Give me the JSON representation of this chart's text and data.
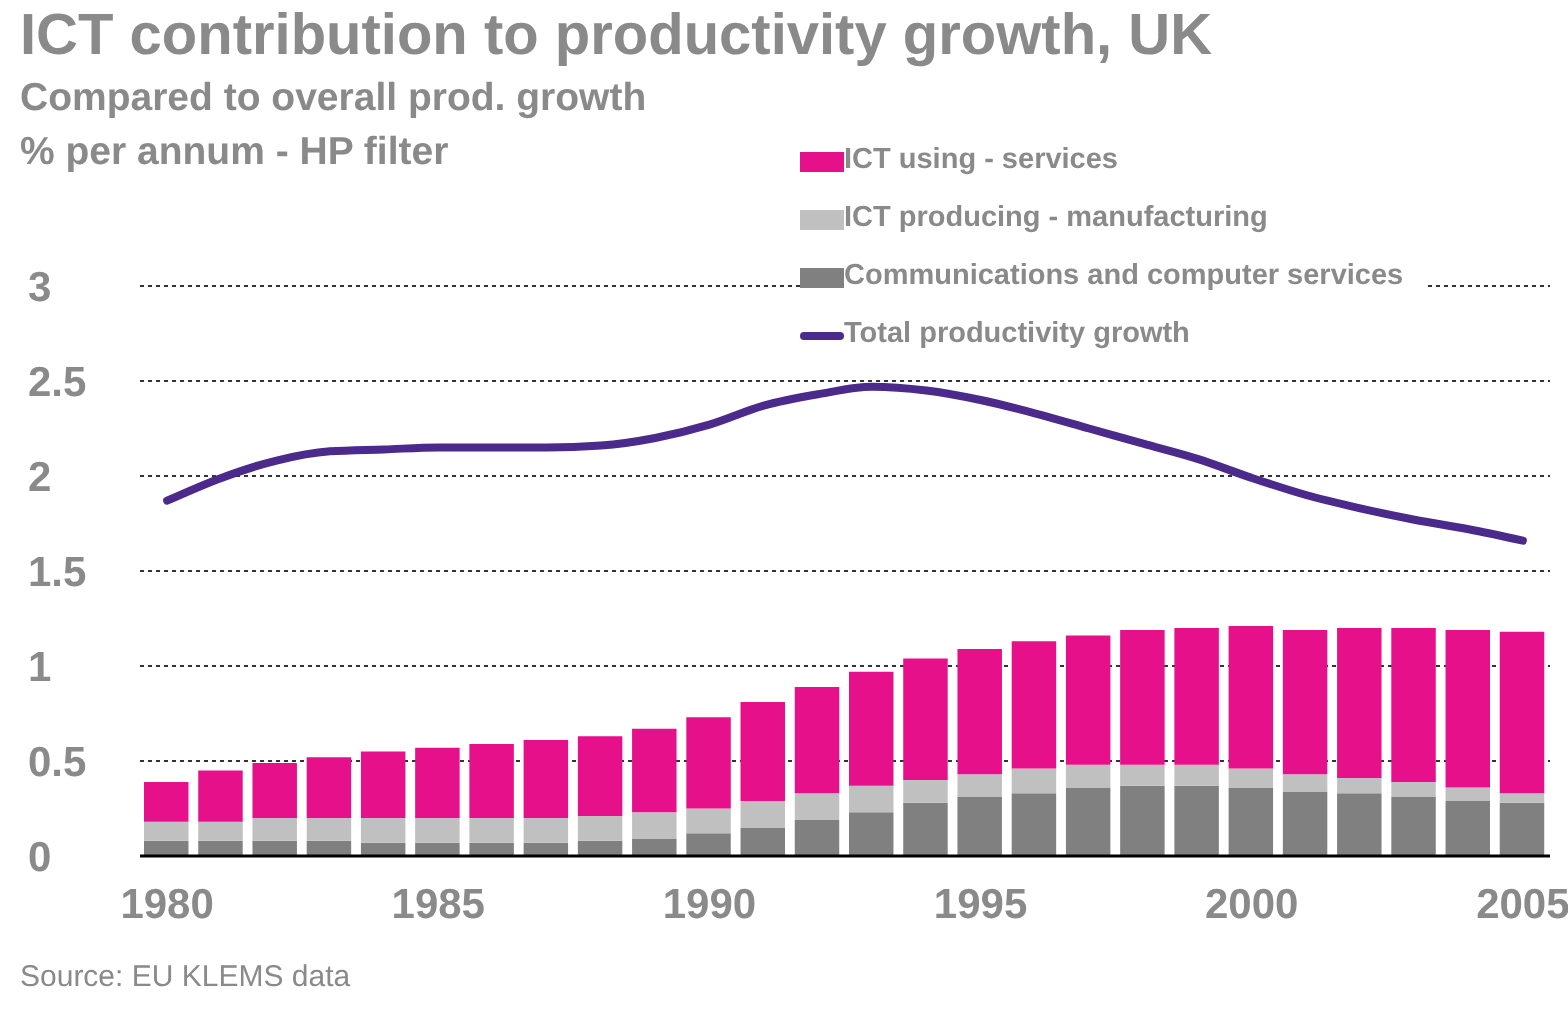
{
  "chart_data": {
    "type": "bar",
    "title": "ICT contribution to productivity growth, UK",
    "subtitle": "Compared to overall prod. growth\n% per annum - HP filter",
    "annotations": [
      "Source: EU KLEMS data"
    ],
    "x": [
      1980,
      1981,
      1982,
      1983,
      1984,
      1985,
      1986,
      1987,
      1988,
      1989,
      1990,
      1991,
      1992,
      1993,
      1994,
      1995,
      1996,
      1997,
      1998,
      1999,
      2000,
      2001,
      2002,
      2003,
      2004,
      2005
    ],
    "stacked": true,
    "series": [
      {
        "name": "Communications and computer services",
        "color": "#808080",
        "values": [
          0.08,
          0.08,
          0.08,
          0.08,
          0.07,
          0.07,
          0.07,
          0.07,
          0.08,
          0.09,
          0.12,
          0.15,
          0.19,
          0.23,
          0.28,
          0.31,
          0.33,
          0.36,
          0.37,
          0.37,
          0.36,
          0.34,
          0.33,
          0.31,
          0.29,
          0.28
        ]
      },
      {
        "name": "ICT producing - manufacturing",
        "color": "#c0c0c0",
        "values": [
          0.1,
          0.1,
          0.12,
          0.12,
          0.13,
          0.13,
          0.13,
          0.13,
          0.13,
          0.14,
          0.13,
          0.14,
          0.14,
          0.14,
          0.12,
          0.12,
          0.13,
          0.12,
          0.11,
          0.11,
          0.1,
          0.09,
          0.08,
          0.08,
          0.07,
          0.05
        ]
      },
      {
        "name": "ICT using - services",
        "color": "#e6108a",
        "values": [
          0.21,
          0.27,
          0.29,
          0.32,
          0.35,
          0.37,
          0.39,
          0.41,
          0.42,
          0.44,
          0.48,
          0.52,
          0.56,
          0.6,
          0.64,
          0.66,
          0.67,
          0.68,
          0.71,
          0.72,
          0.75,
          0.76,
          0.79,
          0.81,
          0.83,
          0.85
        ]
      },
      {
        "name": "Total productivity growth",
        "type": "line",
        "color": "#4b2a8c",
        "values": [
          1.87,
          1.99,
          2.08,
          2.13,
          2.14,
          2.15,
          2.15,
          2.15,
          2.16,
          2.2,
          2.27,
          2.37,
          2.43,
          2.47,
          2.45,
          2.4,
          2.33,
          2.25,
          2.17,
          2.09,
          1.99,
          1.9,
          1.83,
          1.77,
          1.72,
          1.66
        ]
      }
    ],
    "xlim": [
      1979.5,
      2005.5
    ],
    "xticks": [
      1980,
      1985,
      1990,
      1995,
      2000,
      2005
    ],
    "ylim": [
      0,
      3
    ],
    "yticks": [
      0,
      0.5,
      1,
      1.5,
      2,
      2.5,
      3
    ],
    "grid": "y",
    "legend": "top",
    "marker": "none",
    "line_style": "solid"
  }
}
